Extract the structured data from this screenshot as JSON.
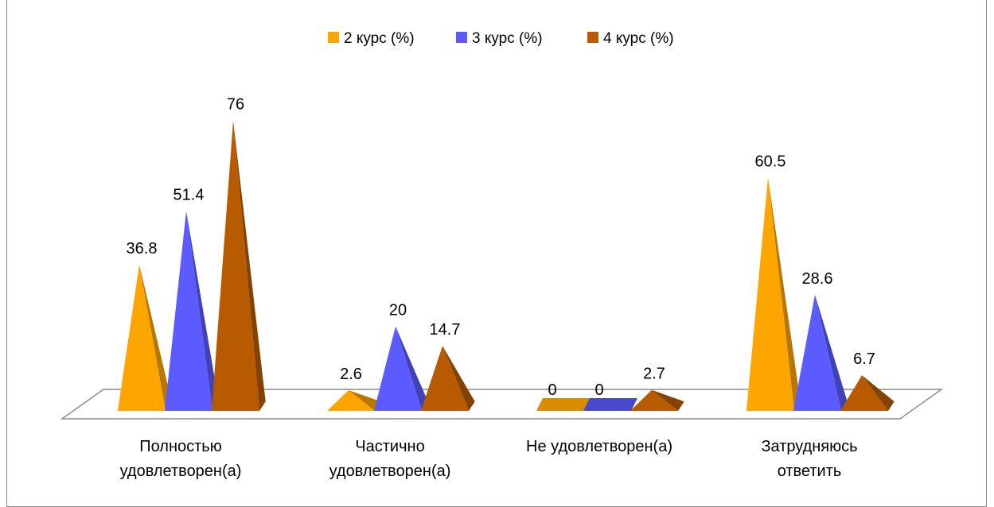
{
  "chart_data": {
    "type": "bar",
    "shape": "pyramid-3d",
    "title": "",
    "categories": [
      [
        "Полностью",
        "удовлетворен(а)"
      ],
      [
        "Частично",
        "удовлетворен(а)"
      ],
      [
        "Не удовлетворен(а)"
      ],
      [
        "Затрудняюсь",
        "ответить"
      ]
    ],
    "series": [
      {
        "name": "2 курс (%)",
        "color": "#FFA500",
        "values": [
          36.8,
          2.6,
          0,
          60.5
        ]
      },
      {
        "name": "3 курс (%)",
        "color": "#5B5BFF",
        "values": [
          51.4,
          20,
          0,
          28.6
        ]
      },
      {
        "name": "4 курс (%)",
        "color": "#B85A00",
        "values": [
          76,
          14.7,
          2.7,
          6.7
        ]
      }
    ],
    "data_labels": [
      [
        "36.8",
        "2.6",
        "0",
        "60.5"
      ],
      [
        "51.4",
        "20",
        "0",
        "28.6"
      ],
      [
        "76",
        "14.7",
        "2.7",
        "6.7"
      ]
    ],
    "ylim": [
      0,
      80
    ],
    "grid": false,
    "legend_position": "top"
  }
}
